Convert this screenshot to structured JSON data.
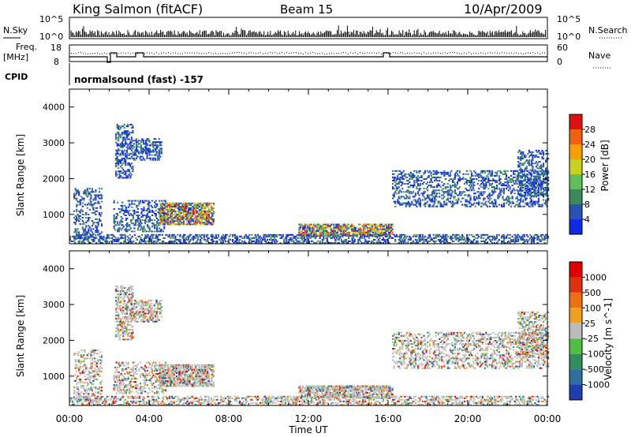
{
  "header": {
    "station": "King Salmon (fitACF)",
    "beam": "Beam 15",
    "date": "10/Apr/2009"
  },
  "top_panel": {
    "nsky_label": "N.Sky",
    "nsearch_label": "N.Search",
    "noise_tick_hi": "10^5",
    "noise_tick_lo": "10^0",
    "freq_label": "Freq.",
    "freq_unit": "[MHz]",
    "freq_tick_hi": "18",
    "freq_tick_lo": "8",
    "nave_label": "Nave",
    "nave_tick_hi": "60",
    "nave_tick_lo": "0",
    "cpid_label": "CPID",
    "cpid_text": "normalsound (fast) -157"
  },
  "chart_data": [
    {
      "type": "heatmap",
      "name": "power",
      "ylabel": "Slant Range [km]",
      "xlabel": "Time UT",
      "x_ticks": [
        "00:00",
        "04:00",
        "08:00",
        "12:00",
        "16:00",
        "20:00",
        "00:00"
      ],
      "y_ticks": [
        "1000",
        "2000",
        "3000",
        "4000"
      ],
      "ylim": [
        180,
        4500
      ],
      "xlim_hours": [
        0,
        24
      ],
      "colorbar": {
        "label": "Power [dB]",
        "ticks": [
          "4",
          "8",
          "12",
          "16",
          "20",
          "24",
          "28"
        ],
        "colors": [
          "#1028e8",
          "#2a52b4",
          "#3a8a5a",
          "#5fbf5a",
          "#c8d020",
          "#f6a000",
          "#f06010",
          "#e01010"
        ]
      }
    },
    {
      "type": "heatmap",
      "name": "velocity",
      "ylabel": "Slant Range [km]",
      "xlabel": "Time UT",
      "x_ticks": [
        "00:00",
        "04:00",
        "08:00",
        "12:00",
        "16:00",
        "20:00",
        "00:00"
      ],
      "y_ticks": [
        "1000",
        "2000",
        "3000",
        "4000"
      ],
      "ylim": [
        180,
        4500
      ],
      "xlim_hours": [
        0,
        24
      ],
      "colorbar": {
        "label": "Velocity [m s^-1]",
        "ticks": [
          "1000",
          "500",
          "100",
          "25",
          "-25",
          "-100",
          "-500",
          "-1000"
        ],
        "colors": [
          "#1f3fb0",
          "#2e6fa0",
          "#2f8f5f",
          "#4fbf3f",
          "#bcbcbc",
          "#f0a020",
          "#f07010",
          "#e03010",
          "#e00000"
        ]
      }
    }
  ]
}
